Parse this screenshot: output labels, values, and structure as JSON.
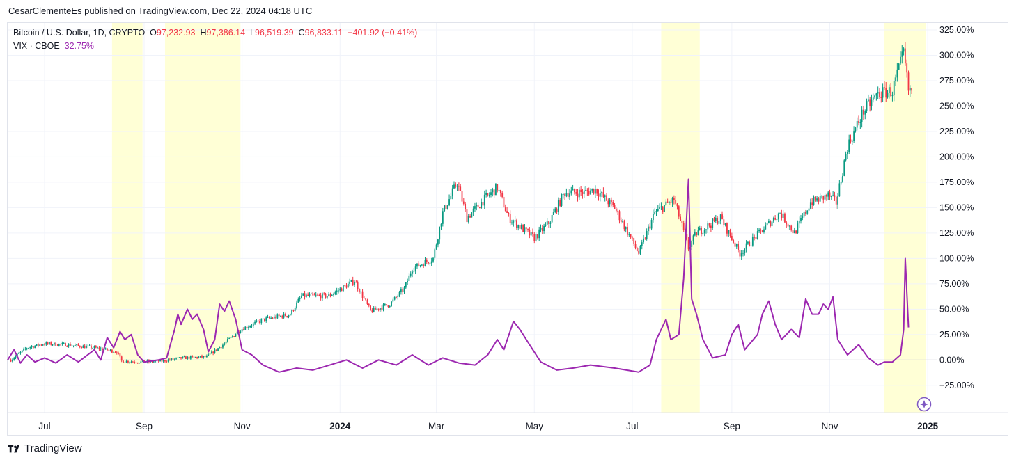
{
  "publisher_line": "CesarClementeEs published on TradingView.com, Dec 22, 2024 04:18 UTC",
  "legend": {
    "symbol": "Bitcoin / U.S. Dollar, 1D, CRYPTO",
    "o_label": "O",
    "o": "97,232.93",
    "h_label": "H",
    "h": "97,386.14",
    "l_label": "L",
    "l": "96,519.39",
    "c_label": "C",
    "c": "96,833.11",
    "change": "−401.92 (−0.41%)",
    "vix_name": "VIX · CBOE",
    "vix_value": "32.75%"
  },
  "footer": {
    "brand": "TradingView"
  },
  "colors": {
    "up": "#089981",
    "down": "#f23645",
    "vix": "#9c27b0",
    "highlight": "#ffffd6",
    "zero_line": "#b2b5be"
  },
  "chart_data": {
    "type": "line",
    "title": "",
    "xlabel": "",
    "ylabel": "",
    "y_unit": "%",
    "ylim": [
      -45,
      325
    ],
    "y_ticks": [
      "325.00%",
      "300.00%",
      "275.00%",
      "250.00%",
      "225.00%",
      "200.00%",
      "175.00%",
      "150.00%",
      "125.00%",
      "100.00%",
      "75.00%",
      "50.00%",
      "25.00%",
      "0.00%",
      "−25.00%"
    ],
    "y_tick_values": [
      325,
      300,
      275,
      250,
      225,
      200,
      175,
      150,
      125,
      100,
      75,
      50,
      25,
      0,
      -25
    ],
    "x_ticks": [
      {
        "label": "Jul",
        "date": "2023-07-01",
        "bold": false
      },
      {
        "label": "Sep",
        "date": "2023-09-01",
        "bold": false
      },
      {
        "label": "Nov",
        "date": "2023-11-01",
        "bold": false
      },
      {
        "label": "2024",
        "date": "2024-01-01",
        "bold": true
      },
      {
        "label": "Mar",
        "date": "2024-03-01",
        "bold": false
      },
      {
        "label": "May",
        "date": "2024-05-01",
        "bold": false
      },
      {
        "label": "Jul",
        "date": "2024-07-01",
        "bold": false
      },
      {
        "label": "Sep",
        "date": "2024-09-01",
        "bold": false
      },
      {
        "label": "Nov",
        "date": "2024-11-01",
        "bold": false
      },
      {
        "label": "2025",
        "date": "2025-01-01",
        "bold": true
      }
    ],
    "x_range": [
      "2023-06-08",
      "2025-01-07"
    ],
    "highlight_ranges": [
      [
        "2023-08-12",
        "2023-08-31"
      ],
      [
        "2023-09-14",
        "2023-10-31"
      ],
      [
        "2024-07-19",
        "2024-08-12"
      ],
      [
        "2024-12-05",
        "2024-12-31"
      ]
    ],
    "series": [
      {
        "name": "Bitcoin / U.S. Dollar, 1D, CRYPTO",
        "style": "candles",
        "points": [
          [
            "2023-06-10",
            0
          ],
          [
            "2023-06-20",
            12
          ],
          [
            "2023-07-01",
            16
          ],
          [
            "2023-07-15",
            15
          ],
          [
            "2023-08-01",
            12
          ],
          [
            "2023-08-15",
            8
          ],
          [
            "2023-08-18",
            -1
          ],
          [
            "2023-09-01",
            -2
          ],
          [
            "2023-09-12",
            -1
          ],
          [
            "2023-09-25",
            2
          ],
          [
            "2023-10-10",
            3
          ],
          [
            "2023-10-20",
            15
          ],
          [
            "2023-10-31",
            30
          ],
          [
            "2023-11-15",
            40
          ],
          [
            "2023-12-01",
            45
          ],
          [
            "2023-12-08",
            63
          ],
          [
            "2023-12-25",
            63
          ],
          [
            "2024-01-10",
            78
          ],
          [
            "2024-01-20",
            48
          ],
          [
            "2024-02-01",
            55
          ],
          [
            "2024-02-10",
            70
          ],
          [
            "2024-02-15",
            90
          ],
          [
            "2024-02-28",
            100
          ],
          [
            "2024-03-05",
            145
          ],
          [
            "2024-03-14",
            175
          ],
          [
            "2024-03-20",
            140
          ],
          [
            "2024-04-01",
            160
          ],
          [
            "2024-04-08",
            170
          ],
          [
            "2024-04-15",
            140
          ],
          [
            "2024-05-01",
            120
          ],
          [
            "2024-05-10",
            135
          ],
          [
            "2024-05-20",
            165
          ],
          [
            "2024-06-01",
            165
          ],
          [
            "2024-06-08",
            168
          ],
          [
            "2024-06-20",
            150
          ],
          [
            "2024-07-05",
            105
          ],
          [
            "2024-07-15",
            145
          ],
          [
            "2024-07-27",
            158
          ],
          [
            "2024-08-05",
            110
          ],
          [
            "2024-08-10",
            125
          ],
          [
            "2024-08-25",
            140
          ],
          [
            "2024-09-06",
            105
          ],
          [
            "2024-09-20",
            128
          ],
          [
            "2024-10-01",
            145
          ],
          [
            "2024-10-10",
            125
          ],
          [
            "2024-10-20",
            155
          ],
          [
            "2024-10-31",
            162
          ],
          [
            "2024-11-05",
            155
          ],
          [
            "2024-11-12",
            210
          ],
          [
            "2024-11-22",
            245
          ],
          [
            "2024-12-01",
            262
          ],
          [
            "2024-12-10",
            265
          ],
          [
            "2024-12-17",
            302
          ],
          [
            "2024-12-20",
            265
          ],
          [
            "2024-12-22",
            265
          ]
        ]
      },
      {
        "name": "VIX · CBOE",
        "style": "line",
        "points": [
          [
            "2023-06-08",
            0
          ],
          [
            "2023-06-12",
            10
          ],
          [
            "2023-06-16",
            -3
          ],
          [
            "2023-06-20",
            5
          ],
          [
            "2023-06-25",
            -2
          ],
          [
            "2023-07-01",
            2
          ],
          [
            "2023-07-08",
            -3
          ],
          [
            "2023-07-15",
            5
          ],
          [
            "2023-07-22",
            -2
          ],
          [
            "2023-08-01",
            10
          ],
          [
            "2023-08-05",
            0
          ],
          [
            "2023-08-09",
            22
          ],
          [
            "2023-08-13",
            12
          ],
          [
            "2023-08-17",
            28
          ],
          [
            "2023-08-20",
            20
          ],
          [
            "2023-08-24",
            25
          ],
          [
            "2023-08-28",
            5
          ],
          [
            "2023-09-01",
            -2
          ],
          [
            "2023-09-10",
            0
          ],
          [
            "2023-09-15",
            2
          ],
          [
            "2023-09-20",
            30
          ],
          [
            "2023-09-22",
            45
          ],
          [
            "2023-09-24",
            35
          ],
          [
            "2023-09-28",
            50
          ],
          [
            "2023-10-01",
            40
          ],
          [
            "2023-10-04",
            45
          ],
          [
            "2023-10-08",
            30
          ],
          [
            "2023-10-11",
            8
          ],
          [
            "2023-10-15",
            20
          ],
          [
            "2023-10-18",
            55
          ],
          [
            "2023-10-21",
            48
          ],
          [
            "2023-10-24",
            58
          ],
          [
            "2023-10-28",
            40
          ],
          [
            "2023-11-01",
            10
          ],
          [
            "2023-11-07",
            5
          ],
          [
            "2023-11-14",
            -5
          ],
          [
            "2023-11-24",
            -12
          ],
          [
            "2023-12-05",
            -8
          ],
          [
            "2023-12-15",
            -10
          ],
          [
            "2024-01-05",
            0
          ],
          [
            "2024-01-15",
            -8
          ],
          [
            "2024-01-25",
            0
          ],
          [
            "2024-02-05",
            -5
          ],
          [
            "2024-02-15",
            5
          ],
          [
            "2024-02-25",
            -5
          ],
          [
            "2024-03-05",
            2
          ],
          [
            "2024-03-15",
            -3
          ],
          [
            "2024-03-25",
            -5
          ],
          [
            "2024-04-02",
            5
          ],
          [
            "2024-04-08",
            20
          ],
          [
            "2024-04-12",
            10
          ],
          [
            "2024-04-18",
            38
          ],
          [
            "2024-04-22",
            30
          ],
          [
            "2024-04-28",
            15
          ],
          [
            "2024-05-05",
            -2
          ],
          [
            "2024-05-15",
            -10
          ],
          [
            "2024-05-25",
            -8
          ],
          [
            "2024-06-05",
            -5
          ],
          [
            "2024-06-20",
            -8
          ],
          [
            "2024-07-05",
            -12
          ],
          [
            "2024-07-12",
            -5
          ],
          [
            "2024-07-16",
            20
          ],
          [
            "2024-07-19",
            30
          ],
          [
            "2024-07-22",
            40
          ],
          [
            "2024-07-25",
            20
          ],
          [
            "2024-07-30",
            25
          ],
          [
            "2024-08-02",
            80
          ],
          [
            "2024-08-05",
            178
          ],
          [
            "2024-08-07",
            60
          ],
          [
            "2024-08-10",
            45
          ],
          [
            "2024-08-14",
            20
          ],
          [
            "2024-08-20",
            2
          ],
          [
            "2024-08-28",
            5
          ],
          [
            "2024-09-01",
            25
          ],
          [
            "2024-09-05",
            35
          ],
          [
            "2024-09-09",
            10
          ],
          [
            "2024-09-17",
            25
          ],
          [
            "2024-09-20",
            45
          ],
          [
            "2024-09-24",
            58
          ],
          [
            "2024-09-28",
            35
          ],
          [
            "2024-10-02",
            20
          ],
          [
            "2024-10-08",
            30
          ],
          [
            "2024-10-13",
            22
          ],
          [
            "2024-10-17",
            60
          ],
          [
            "2024-10-21",
            45
          ],
          [
            "2024-10-25",
            45
          ],
          [
            "2024-10-28",
            55
          ],
          [
            "2024-10-31",
            50
          ],
          [
            "2024-11-03",
            62
          ],
          [
            "2024-11-06",
            20
          ],
          [
            "2024-11-12",
            5
          ],
          [
            "2024-11-19",
            15
          ],
          [
            "2024-11-25",
            2
          ],
          [
            "2024-12-01",
            -5
          ],
          [
            "2024-12-05",
            -2
          ],
          [
            "2024-12-10",
            -2
          ],
          [
            "2024-12-15",
            5
          ],
          [
            "2024-12-17",
            30
          ],
          [
            "2024-12-18",
            100
          ],
          [
            "2024-12-20",
            32
          ]
        ]
      }
    ]
  }
}
